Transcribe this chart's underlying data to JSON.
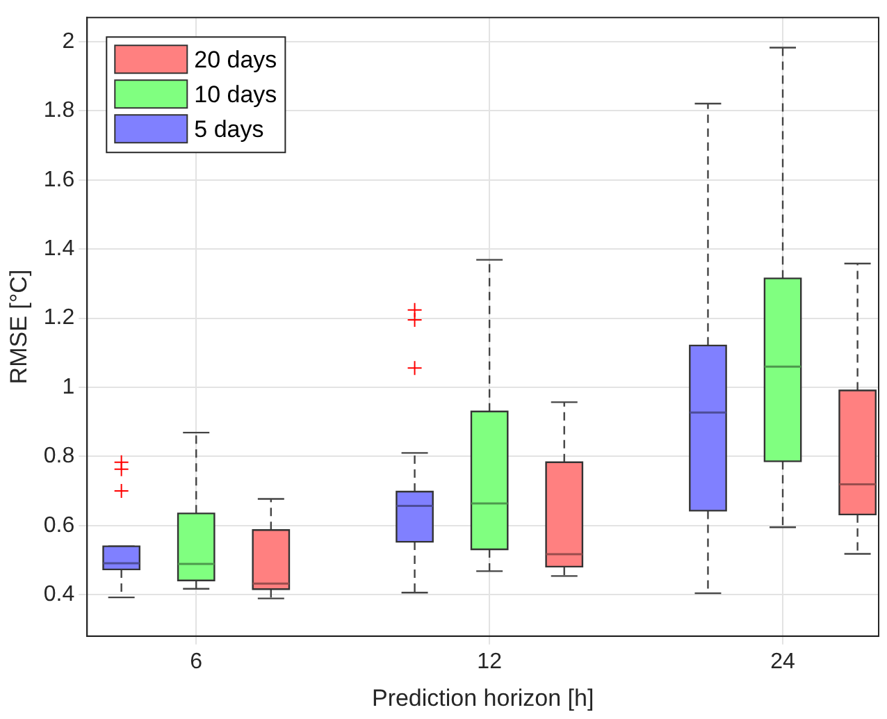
{
  "chart_data": {
    "type": "box",
    "xlabel": "Prediction horizon [h]",
    "ylabel": "RMSE [°C]",
    "categories": [
      "6",
      "12",
      "24"
    ],
    "ylim": [
      0.28,
      2.07
    ],
    "yticks": [
      0.4,
      0.6,
      0.8,
      1,
      1.2,
      1.4,
      1.6,
      1.8,
      2
    ],
    "grid": true,
    "legend": "top left",
    "series": [
      {
        "name": "5 days",
        "color": "#8080ff",
        "boxes": [
          {
            "low": 0.392,
            "q1": 0.473,
            "median": 0.491,
            "q3": 0.54,
            "high": 0.54,
            "outliers": [
              0.783,
              0.763,
              0.7
            ]
          },
          {
            "low": 0.406,
            "q1": 0.553,
            "median": 0.657,
            "q3": 0.698,
            "high": 0.81,
            "outliers": [
              1.224,
              1.195,
              1.056
            ]
          },
          {
            "low": 0.404,
            "q1": 0.643,
            "median": 0.927,
            "q3": 1.121,
            "high": 1.821
          }
        ]
      },
      {
        "name": "10 days",
        "color": "#80ff80",
        "boxes": [
          {
            "low": 0.417,
            "q1": 0.441,
            "median": 0.489,
            "q3": 0.635,
            "high": 0.869
          },
          {
            "low": 0.468,
            "q1": 0.531,
            "median": 0.664,
            "q3": 0.93,
            "high": 1.369
          },
          {
            "low": 0.595,
            "q1": 0.786,
            "median": 1.06,
            "q3": 1.315,
            "high": 1.983
          }
        ]
      },
      {
        "name": "20 days",
        "color": "#ff8080",
        "boxes": [
          {
            "low": 0.389,
            "q1": 0.416,
            "median": 0.432,
            "q3": 0.587,
            "high": 0.677
          },
          {
            "low": 0.454,
            "q1": 0.481,
            "median": 0.517,
            "q3": 0.783,
            "high": 0.957
          },
          {
            "low": 0.518,
            "q1": 0.632,
            "median": 0.719,
            "q3": 0.991,
            "high": 1.358
          }
        ]
      }
    ]
  }
}
